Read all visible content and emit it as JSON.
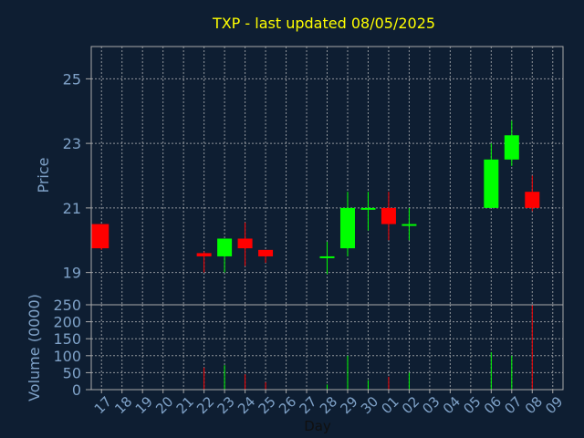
{
  "chart_data": {
    "type": "candlestick",
    "title": "TXP - last updated 08/05/2025",
    "xlabel": "Day",
    "ylabel_price": "Price",
    "ylabel_volume": "Volume (0000)",
    "price_ylim": [
      18,
      26
    ],
    "price_ticks": [
      19,
      21,
      23,
      25
    ],
    "volume_ylim": [
      0,
      250
    ],
    "volume_ticks": [
      0,
      50,
      100,
      150,
      200,
      250
    ],
    "grid": true,
    "colors": {
      "background": "#0e1e32",
      "up": "#00ff00",
      "down": "#ff0000",
      "title": "#ffff00",
      "axis_text": "#7fa2c8",
      "grid": "#c8c8c8",
      "frame": "#aaaaaa"
    },
    "x_labels": [
      "17",
      "18",
      "19",
      "20",
      "21",
      "22",
      "23",
      "24",
      "25",
      "26",
      "27",
      "28",
      "29",
      "30",
      "01",
      "02",
      "03",
      "04",
      "05",
      "06",
      "07",
      "08",
      "09"
    ],
    "candles": [
      {
        "i": 0,
        "open": 20.5,
        "high": 20.5,
        "low": 19.7,
        "close": 19.75,
        "volume": 0
      },
      {
        "i": 5,
        "open": 19.6,
        "high": 19.65,
        "low": 19.0,
        "close": 19.5,
        "volume": 65
      },
      {
        "i": 6,
        "open": 19.5,
        "high": 20.05,
        "low": 19.0,
        "close": 20.05,
        "volume": 72
      },
      {
        "i": 7,
        "open": 20.05,
        "high": 20.55,
        "low": 19.2,
        "close": 19.75,
        "volume": 45
      },
      {
        "i": 8,
        "open": 19.7,
        "high": 19.7,
        "low": 19.3,
        "close": 19.5,
        "volume": 22
      },
      {
        "i": 11,
        "open": 19.5,
        "high": 19.95,
        "low": 18.95,
        "close": 19.5,
        "volume": 15
      },
      {
        "i": 12,
        "open": 19.75,
        "high": 21.5,
        "low": 19.5,
        "close": 21.0,
        "volume": 100
      },
      {
        "i": 13,
        "open": 21.0,
        "high": 21.5,
        "low": 20.3,
        "close": 21.0,
        "volume": 28
      },
      {
        "i": 14,
        "open": 21.0,
        "high": 21.5,
        "low": 20.0,
        "close": 20.5,
        "volume": 38
      },
      {
        "i": 15,
        "open": 20.45,
        "high": 21.0,
        "low": 20.0,
        "close": 20.5,
        "volume": 50
      },
      {
        "i": 19,
        "open": 21.0,
        "high": 23.0,
        "low": 21.0,
        "close": 22.5,
        "volume": 110
      },
      {
        "i": 20,
        "open": 22.5,
        "high": 23.7,
        "low": 22.3,
        "close": 23.25,
        "volume": 100
      },
      {
        "i": 21,
        "open": 21.5,
        "high": 22.0,
        "low": 20.9,
        "close": 21.0,
        "volume": 250
      }
    ]
  }
}
